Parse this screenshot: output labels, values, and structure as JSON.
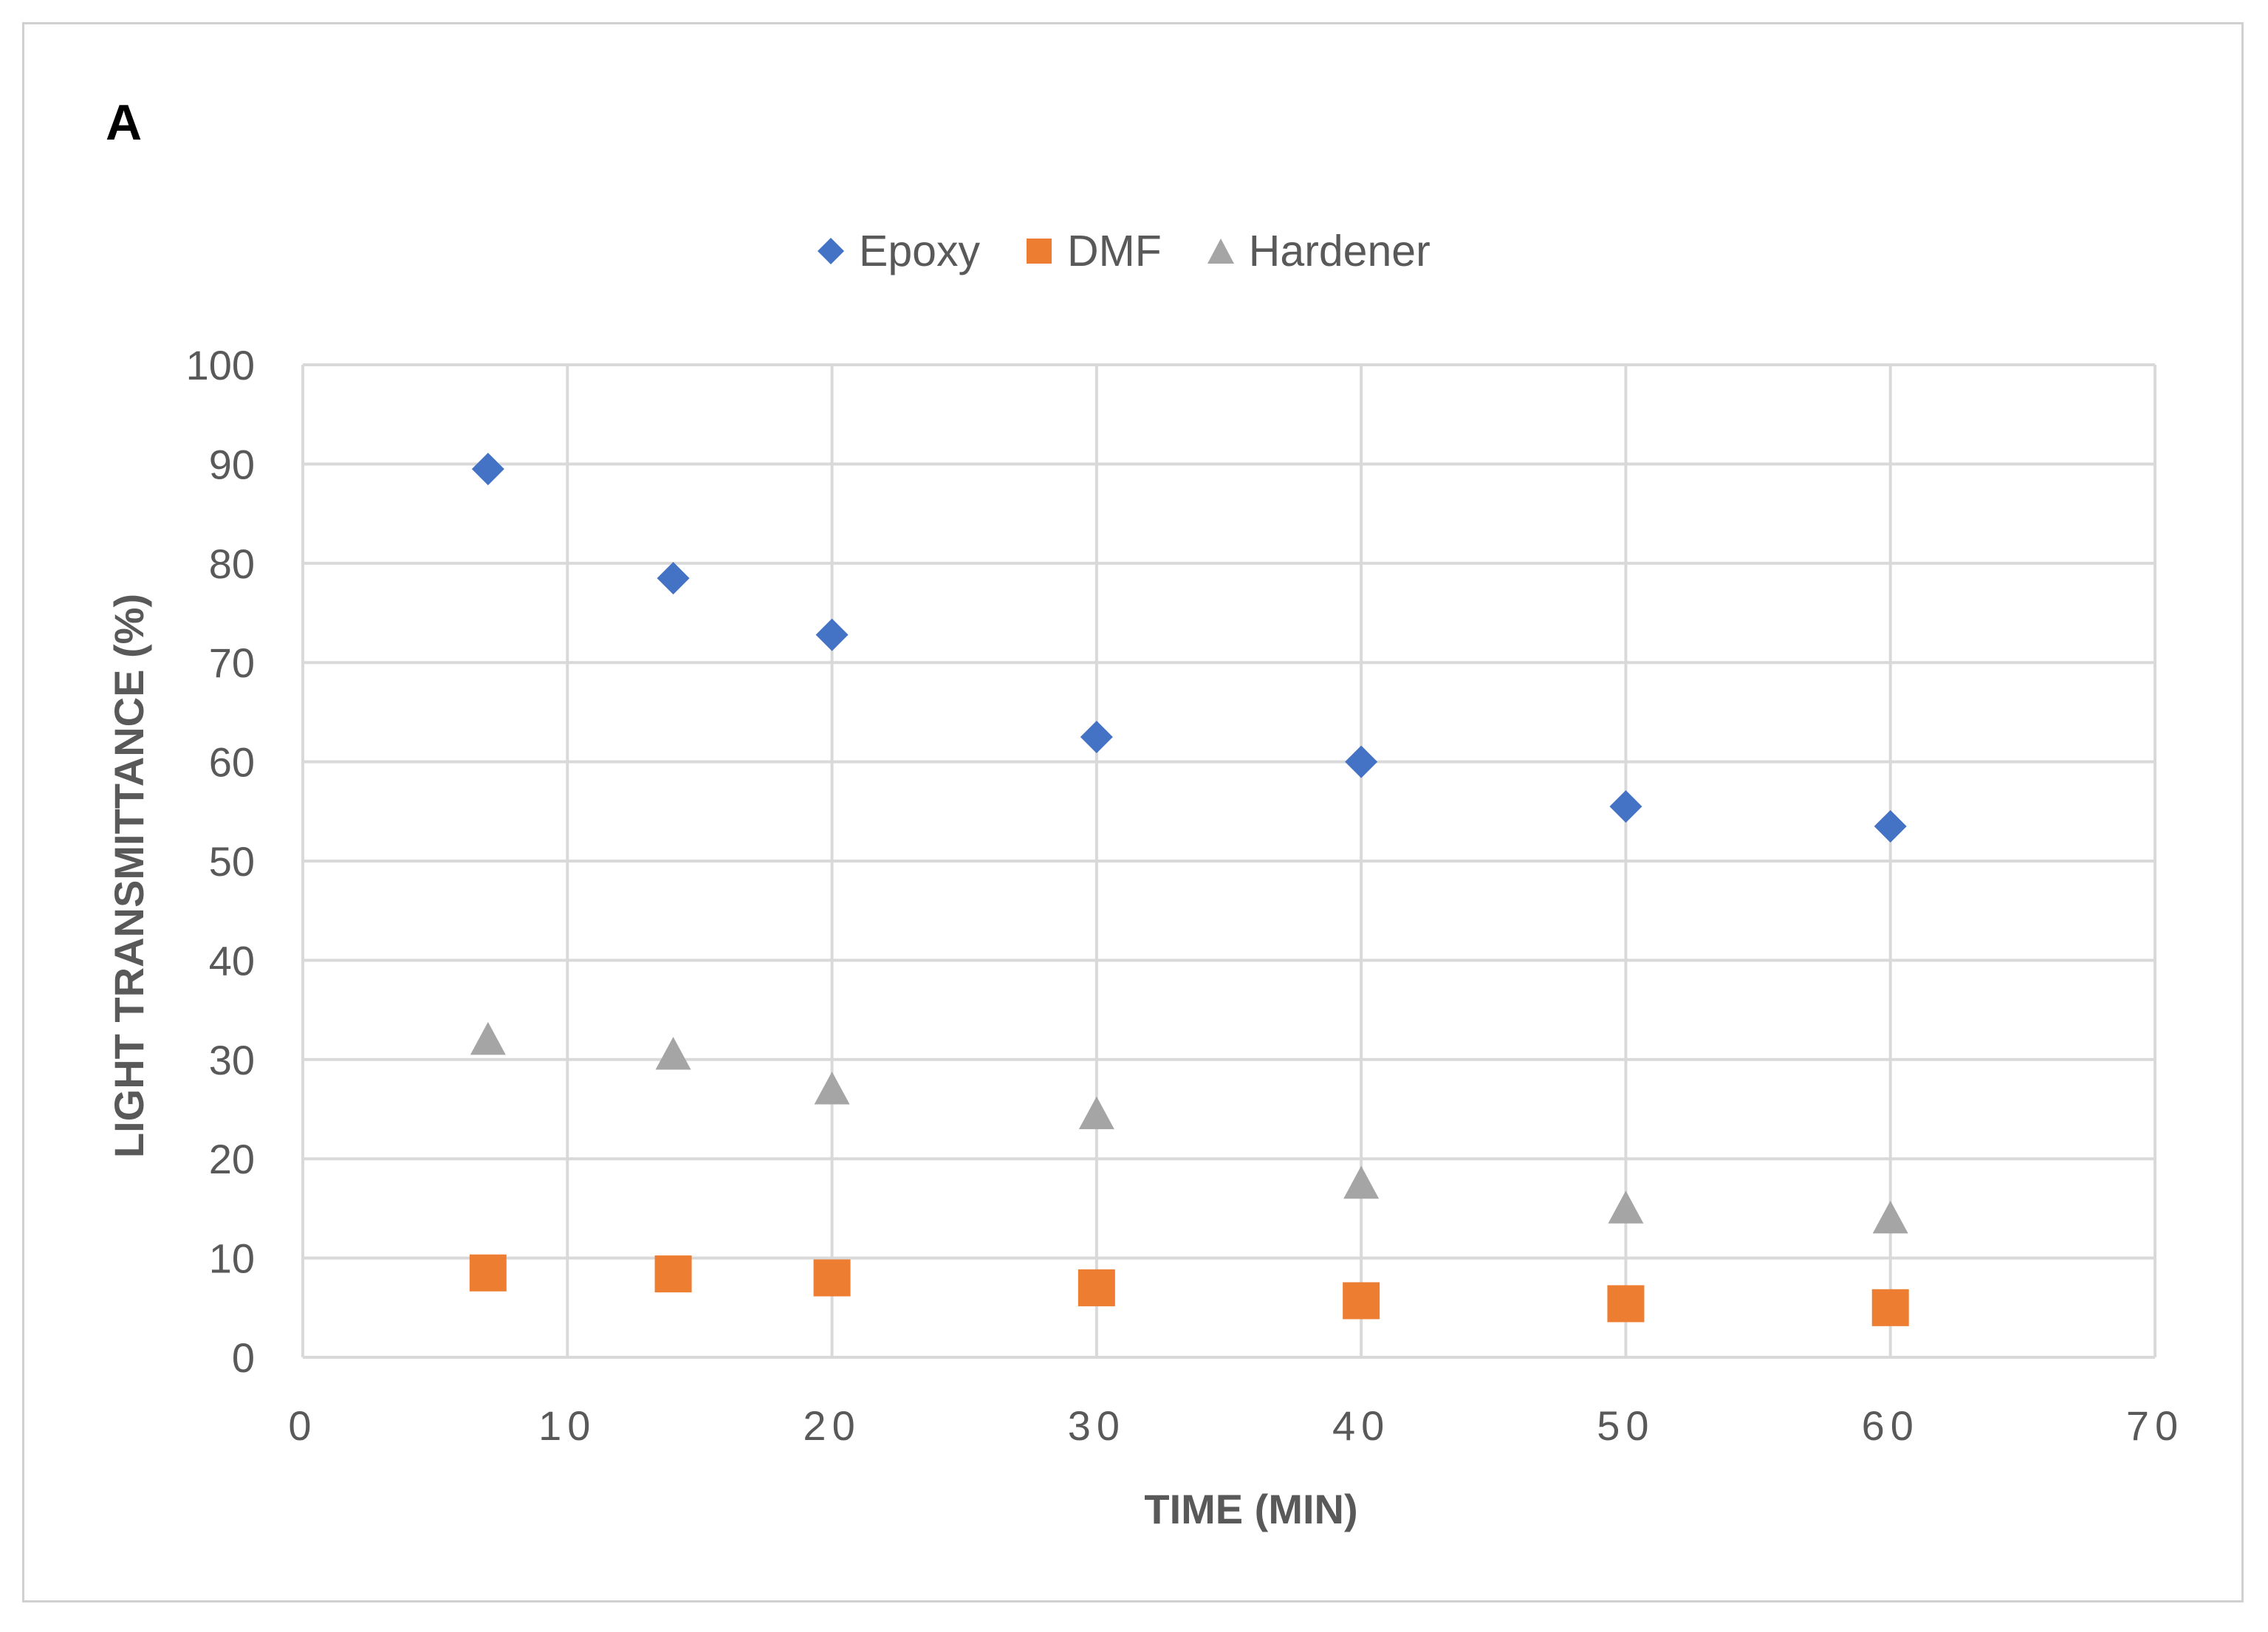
{
  "panel_label": "A",
  "chart_data": {
    "type": "scatter",
    "xlabel": "TIME (MIN)",
    "ylabel": "LIGHT TRANSMITTANCE (%)",
    "xlim": [
      0,
      70
    ],
    "ylim": [
      0,
      100
    ],
    "x_ticks": [
      0,
      10,
      20,
      30,
      40,
      50,
      60,
      70
    ],
    "y_ticks": [
      0,
      10,
      20,
      30,
      40,
      50,
      60,
      70,
      80,
      90,
      100
    ],
    "grid": true,
    "legend_position": "top",
    "series": [
      {
        "name": "Epoxy",
        "marker": "diamond",
        "color": "#4472C4",
        "points": [
          [
            7,
            89.5
          ],
          [
            14,
            78.5
          ],
          [
            20,
            72.8
          ],
          [
            30,
            62.5
          ],
          [
            40,
            60
          ],
          [
            50,
            55.5
          ],
          [
            60,
            53.5
          ]
        ]
      },
      {
        "name": "DMF",
        "marker": "square",
        "color": "#ED7D31",
        "points": [
          [
            7,
            8.5
          ],
          [
            14,
            8.4
          ],
          [
            20,
            8
          ],
          [
            30,
            7
          ],
          [
            40,
            5.7
          ],
          [
            50,
            5.4
          ],
          [
            60,
            5
          ]
        ]
      },
      {
        "name": "Hardener",
        "marker": "triangle",
        "color": "#A5A5A5",
        "points": [
          [
            7,
            32
          ],
          [
            14,
            30.5
          ],
          [
            20,
            27
          ],
          [
            30,
            24.5
          ],
          [
            40,
            17.5
          ],
          [
            50,
            15
          ],
          [
            60,
            14
          ]
        ]
      }
    ]
  }
}
